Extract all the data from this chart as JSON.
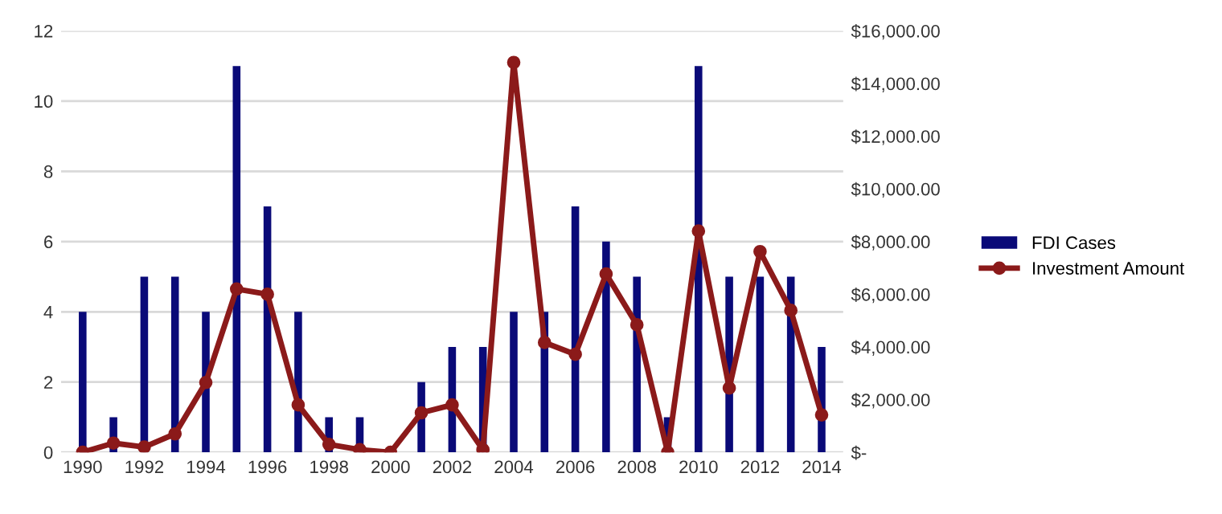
{
  "chart_data": {
    "type": "bar",
    "categories": [
      "1990",
      null,
      "1992",
      null,
      "1994",
      null,
      "1996",
      null,
      "1998",
      null,
      "2000",
      null,
      "2002",
      null,
      "2004",
      null,
      "2006",
      null,
      "2008",
      null,
      "2010",
      null,
      "2012",
      null,
      "2014"
    ],
    "series": [
      {
        "name": "FDI Cases",
        "color": "#0a0a78",
        "values": [
          4,
          1,
          5,
          5,
          4,
          11,
          7,
          4,
          1,
          1,
          0,
          2,
          3,
          3,
          4,
          4,
          7,
          6,
          5,
          1,
          11,
          5,
          5,
          5,
          3
        ]
      },
      {
        "name": "Investment Amount",
        "type": "line",
        "axis": "y2",
        "color": "#8b1a1a",
        "values": [
          0,
          350,
          200,
          700,
          2650,
          6200,
          6000,
          1800,
          300,
          100,
          0,
          1500,
          1800,
          100,
          14800,
          4170,
          3720,
          6770,
          4840,
          0,
          8400,
          2440,
          7620,
          5390,
          1420
        ]
      }
    ],
    "ylim": [
      0,
      12
    ],
    "yticks": [
      0,
      2,
      4,
      6,
      8,
      10,
      12
    ],
    "y2lim": [
      0,
      16000
    ],
    "y2ticks": [
      {
        "value": 0,
        "label": "$-"
      },
      {
        "value": 2000,
        "label": "$2,000.00"
      },
      {
        "value": 4000,
        "label": "$4,000.00"
      },
      {
        "value": 6000,
        "label": "$6,000.00"
      },
      {
        "value": 8000,
        "label": "$8,000.00"
      },
      {
        "value": 10000,
        "label": "$10,000.00"
      },
      {
        "value": 12000,
        "label": "$12,000.00"
      },
      {
        "value": 14000,
        "label": "$14,000.00"
      },
      {
        "value": 16000,
        "label": "$16,000.00"
      }
    ],
    "grid": "y",
    "legend": "right",
    "marker": "circle"
  }
}
